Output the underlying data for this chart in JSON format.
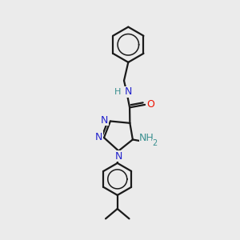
{
  "bg_color": "#ebebeb",
  "line_color": "#1a1a1a",
  "n_color": "#2222cc",
  "o_color": "#ee1100",
  "nh_color": "#3a9090",
  "bond_lw": 1.6,
  "fig_w": 3.0,
  "fig_h": 3.0,
  "dpi": 100,
  "xlim": [
    0,
    10
  ],
  "ylim": [
    0,
    10
  ]
}
